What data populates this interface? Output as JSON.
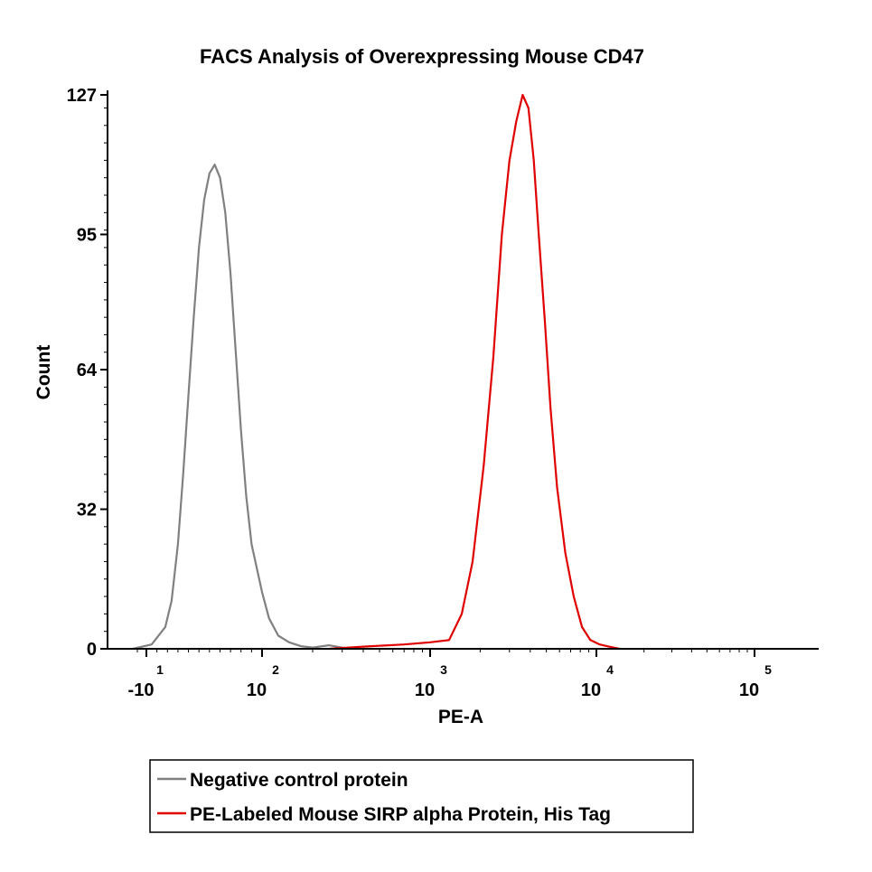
{
  "chart_data": {
    "type": "line",
    "title": "FACS Analysis of Overexpressing Mouse CD47",
    "xlabel": "PE-A",
    "ylabel": "Count",
    "x_scale": "biexponential (log)",
    "ylim": [
      0,
      127
    ],
    "y_ticks": [
      "0",
      "32",
      "64",
      "95",
      "127"
    ],
    "x_ticks": [
      {
        "base": "-10",
        "exp": "1",
        "value": -10
      },
      {
        "base": "10",
        "exp": "2",
        "value": 100
      },
      {
        "base": "10",
        "exp": "3",
        "value": 1000
      },
      {
        "base": "10",
        "exp": "4",
        "value": 10000
      },
      {
        "base": "10",
        "exp": "5",
        "value": 100000
      }
    ],
    "grid": false,
    "legend_position": "bottom",
    "series": [
      {
        "name": "Negative control protein",
        "color": "#808080",
        "x": [
          -25,
          -5,
          8,
          14,
          20,
          25,
          30,
          35,
          40,
          45,
          50,
          55,
          60,
          65,
          70,
          75,
          80,
          85,
          90,
          100,
          110,
          125,
          145,
          170,
          200,
          250,
          330
        ],
        "y": [
          0,
          1,
          5,
          11,
          24,
          40,
          58,
          76,
          92,
          103,
          109,
          111,
          108,
          100,
          86,
          68,
          50,
          35,
          24,
          13,
          7,
          3,
          1.5,
          0.6,
          0.3,
          0.8,
          0
        ]
      },
      {
        "name": "PE-Labeled Mouse SIRP alpha Protein, His Tag",
        "color": "#E00000",
        "x": [
          250,
          400,
          700,
          1000,
          1300,
          1550,
          1800,
          2100,
          2400,
          2700,
          3000,
          3300,
          3600,
          3900,
          4200,
          4500,
          4900,
          5300,
          5800,
          6500,
          7300,
          8200,
          9200,
          10500,
          12000,
          14000
        ],
        "y": [
          0,
          0.5,
          1,
          1.5,
          2,
          8,
          20,
          42,
          67,
          95,
          112,
          121,
          127,
          124,
          112,
          95,
          75,
          55,
          37,
          22,
          12,
          5,
          2,
          1,
          0.5,
          0
        ]
      }
    ]
  }
}
